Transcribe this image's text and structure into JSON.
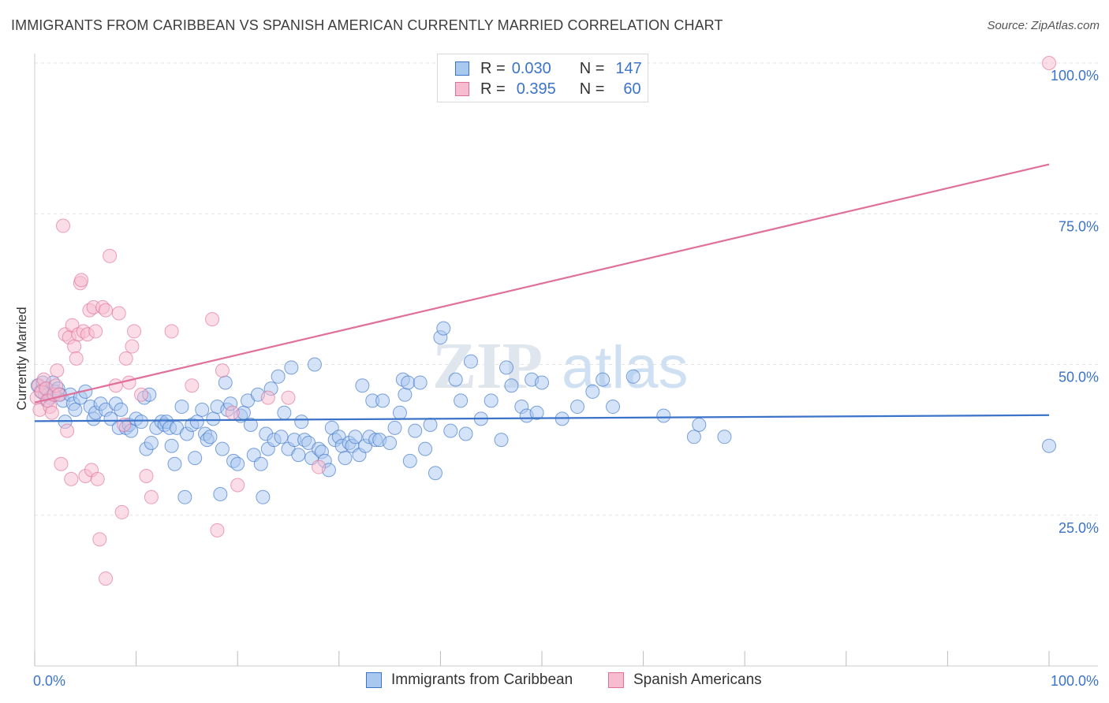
{
  "title": "IMMIGRANTS FROM CARIBBEAN VS SPANISH AMERICAN CURRENTLY MARRIED CORRELATION CHART",
  "source": "Source: ZipAtlas.com",
  "watermark": {
    "zip": "ZIP",
    "atlas": "atlas"
  },
  "colors": {
    "blue": "#3b73c9",
    "blue_fill": "#a9c8f0",
    "pink": "#e0709a",
    "pink_fill": "#f7bcd0",
    "grid": "#e3e3e3"
  },
  "legend": {
    "r_label": "R =",
    "n_label": "N =",
    "rows": [
      {
        "name": "Immigrants from Caribbean",
        "r": "0.030",
        "n": "147"
      },
      {
        "name": "Spanish Americans",
        "r": "0.395",
        "n": "60"
      }
    ]
  },
  "chart_data": {
    "type": "scatter",
    "title": "IMMIGRANTS FROM CARIBBEAN VS SPANISH AMERICAN CURRENTLY MARRIED CORRELATION CHART",
    "xlabel": "",
    "ylabel": "Currently Married",
    "xlim": [
      0,
      100
    ],
    "ylim": [
      0,
      100
    ],
    "x_tick_labels": [
      "0.0%",
      "100.0%"
    ],
    "y_ticks": [
      25,
      50,
      75,
      100
    ],
    "y_tick_labels": [
      "25.0%",
      "50.0%",
      "75.0%",
      "100.0%"
    ],
    "grid": true,
    "series": [
      {
        "name": "Immigrants from Caribbean",
        "color": "#3b73c9",
        "trend": {
          "x": [
            0,
            100
          ],
          "y": [
            40.6,
            41.6
          ]
        },
        "points": [
          [
            0.3,
            46.5
          ],
          [
            0.6,
            45.5
          ],
          [
            0.8,
            47.0
          ],
          [
            1.0,
            45.0
          ],
          [
            1.2,
            46.0
          ],
          [
            1.5,
            44.5
          ],
          [
            1.8,
            47.0
          ],
          [
            2.0,
            45.5
          ],
          [
            2.3,
            46.0
          ],
          [
            2.5,
            45.0
          ],
          [
            2.8,
            44.0
          ],
          [
            3.0,
            40.5
          ],
          [
            3.5,
            45.0
          ],
          [
            3.8,
            43.5
          ],
          [
            4.0,
            42.5
          ],
          [
            4.5,
            44.5
          ],
          [
            5.0,
            45.5
          ],
          [
            5.5,
            43.0
          ],
          [
            5.8,
            41.0
          ],
          [
            6.0,
            42.0
          ],
          [
            6.5,
            43.5
          ],
          [
            7.0,
            42.5
          ],
          [
            7.5,
            41.0
          ],
          [
            8.0,
            43.5
          ],
          [
            8.3,
            39.5
          ],
          [
            8.5,
            42.5
          ],
          [
            9.0,
            39.5
          ],
          [
            9.3,
            40.0
          ],
          [
            9.5,
            39.0
          ],
          [
            10.0,
            41.0
          ],
          [
            10.5,
            40.5
          ],
          [
            10.8,
            44.5
          ],
          [
            11.0,
            36.0
          ],
          [
            11.3,
            45.0
          ],
          [
            11.5,
            37.0
          ],
          [
            12.0,
            39.5
          ],
          [
            12.5,
            40.5
          ],
          [
            12.8,
            40.0
          ],
          [
            13.0,
            40.5
          ],
          [
            13.3,
            39.5
          ],
          [
            13.5,
            36.5
          ],
          [
            13.8,
            33.5
          ],
          [
            14.0,
            39.5
          ],
          [
            14.5,
            43.0
          ],
          [
            14.8,
            28.0
          ],
          [
            15.0,
            38.5
          ],
          [
            15.5,
            40.0
          ],
          [
            15.8,
            34.5
          ],
          [
            16.0,
            40.5
          ],
          [
            16.5,
            42.5
          ],
          [
            16.8,
            38.5
          ],
          [
            17.0,
            37.5
          ],
          [
            17.3,
            38.0
          ],
          [
            17.6,
            41.0
          ],
          [
            18.0,
            43.0
          ],
          [
            18.3,
            28.5
          ],
          [
            18.5,
            36.0
          ],
          [
            18.8,
            47.0
          ],
          [
            19.0,
            42.5
          ],
          [
            19.3,
            43.5
          ],
          [
            19.6,
            34.0
          ],
          [
            20.0,
            33.5
          ],
          [
            20.3,
            41.5
          ],
          [
            20.6,
            42.0
          ],
          [
            21.0,
            44.0
          ],
          [
            21.3,
            40.0
          ],
          [
            21.6,
            35.0
          ],
          [
            22.0,
            45.0
          ],
          [
            22.3,
            33.5
          ],
          [
            22.5,
            28.0
          ],
          [
            22.8,
            38.5
          ],
          [
            23.0,
            36.0
          ],
          [
            23.3,
            46.0
          ],
          [
            23.6,
            37.5
          ],
          [
            24.0,
            48.0
          ],
          [
            24.3,
            38.0
          ],
          [
            24.6,
            42.0
          ],
          [
            25.0,
            36.0
          ],
          [
            25.3,
            49.5
          ],
          [
            25.6,
            37.5
          ],
          [
            26.0,
            35.0
          ],
          [
            26.3,
            40.5
          ],
          [
            26.6,
            37.5
          ],
          [
            27.0,
            37.0
          ],
          [
            27.3,
            34.5
          ],
          [
            27.6,
            50.0
          ],
          [
            28.0,
            36.0
          ],
          [
            28.3,
            35.5
          ],
          [
            28.6,
            34.0
          ],
          [
            29.0,
            32.5
          ],
          [
            29.3,
            39.5
          ],
          [
            29.6,
            37.5
          ],
          [
            30.0,
            38.0
          ],
          [
            30.3,
            36.5
          ],
          [
            30.6,
            34.5
          ],
          [
            31.0,
            37.0
          ],
          [
            31.3,
            36.5
          ],
          [
            31.6,
            38.0
          ],
          [
            32.0,
            35.0
          ],
          [
            32.3,
            46.5
          ],
          [
            32.6,
            36.5
          ],
          [
            33.0,
            38.0
          ],
          [
            33.3,
            44.0
          ],
          [
            33.6,
            37.5
          ],
          [
            34.0,
            37.5
          ],
          [
            34.3,
            44.0
          ],
          [
            35.0,
            37.0
          ],
          [
            35.5,
            39.5
          ],
          [
            36.0,
            42.0
          ],
          [
            36.3,
            47.5
          ],
          [
            36.5,
            45.0
          ],
          [
            36.8,
            47.0
          ],
          [
            37.0,
            34.0
          ],
          [
            37.5,
            39.0
          ],
          [
            38.0,
            47.0
          ],
          [
            38.5,
            36.0
          ],
          [
            39.0,
            40.0
          ],
          [
            39.5,
            32.0
          ],
          [
            40.0,
            54.5
          ],
          [
            40.3,
            56.0
          ],
          [
            41.0,
            39.0
          ],
          [
            41.5,
            47.5
          ],
          [
            42.0,
            44.0
          ],
          [
            42.5,
            38.5
          ],
          [
            43.0,
            50.5
          ],
          [
            44.0,
            41.0
          ],
          [
            45.0,
            44.0
          ],
          [
            46.0,
            37.5
          ],
          [
            46.5,
            49.5
          ],
          [
            47.0,
            46.5
          ],
          [
            48.0,
            43.0
          ],
          [
            48.5,
            41.5
          ],
          [
            49.0,
            47.5
          ],
          [
            49.5,
            42.0
          ],
          [
            50.0,
            47.0
          ],
          [
            52.0,
            41.0
          ],
          [
            53.5,
            43.0
          ],
          [
            55.0,
            45.5
          ],
          [
            56.0,
            47.5
          ],
          [
            57.0,
            43.0
          ],
          [
            59.0,
            48.0
          ],
          [
            62.0,
            41.5
          ],
          [
            65.0,
            38.0
          ],
          [
            65.5,
            40.0
          ],
          [
            68.0,
            38.0
          ],
          [
            100.0,
            36.5
          ],
          [
            1.2,
            44.0
          ]
        ]
      },
      {
        "name": "Spanish Americans",
        "color": "#e0709a",
        "trend": {
          "x": [
            0,
            100
          ],
          "y": [
            43.7,
            83.2
          ]
        },
        "points": [
          [
            0.2,
            44.5
          ],
          [
            0.4,
            46.5
          ],
          [
            0.5,
            42.5
          ],
          [
            0.7,
            45.5
          ],
          [
            0.9,
            47.5
          ],
          [
            1.1,
            46.0
          ],
          [
            1.3,
            44.0
          ],
          [
            1.5,
            43.0
          ],
          [
            1.7,
            42.0
          ],
          [
            1.9,
            45.0
          ],
          [
            2.1,
            46.5
          ],
          [
            2.2,
            49.0
          ],
          [
            2.4,
            45.0
          ],
          [
            2.6,
            33.5
          ],
          [
            2.8,
            73.0
          ],
          [
            3.0,
            55.0
          ],
          [
            3.2,
            39.0
          ],
          [
            3.4,
            54.5
          ],
          [
            3.6,
            31.0
          ],
          [
            3.7,
            56.5
          ],
          [
            3.9,
            53.0
          ],
          [
            4.1,
            51.0
          ],
          [
            4.3,
            55.0
          ],
          [
            4.5,
            63.5
          ],
          [
            4.6,
            64.0
          ],
          [
            4.8,
            55.5
          ],
          [
            5.0,
            31.5
          ],
          [
            5.2,
            55.0
          ],
          [
            5.4,
            59.0
          ],
          [
            5.6,
            32.5
          ],
          [
            5.8,
            59.5
          ],
          [
            6.0,
            55.5
          ],
          [
            6.2,
            31.0
          ],
          [
            6.4,
            21.0
          ],
          [
            6.7,
            59.5
          ],
          [
            7.0,
            59.0
          ],
          [
            7.4,
            68.0
          ],
          [
            8.0,
            46.5
          ],
          [
            8.3,
            58.5
          ],
          [
            8.6,
            25.5
          ],
          [
            8.8,
            40.0
          ],
          [
            9.0,
            51.0
          ],
          [
            9.3,
            47.0
          ],
          [
            9.6,
            53.0
          ],
          [
            9.8,
            55.5
          ],
          [
            10.5,
            45.0
          ],
          [
            11.0,
            31.5
          ],
          [
            11.5,
            28.0
          ],
          [
            13.5,
            55.5
          ],
          [
            15.5,
            46.5
          ],
          [
            17.5,
            57.5
          ],
          [
            18.0,
            22.5
          ],
          [
            18.5,
            49.0
          ],
          [
            19.5,
            42.0
          ],
          [
            20.0,
            30.0
          ],
          [
            23.0,
            44.5
          ],
          [
            25.0,
            44.5
          ],
          [
            28.0,
            33.0
          ],
          [
            7.0,
            14.5
          ],
          [
            100.0,
            100.0
          ]
        ]
      }
    ]
  }
}
